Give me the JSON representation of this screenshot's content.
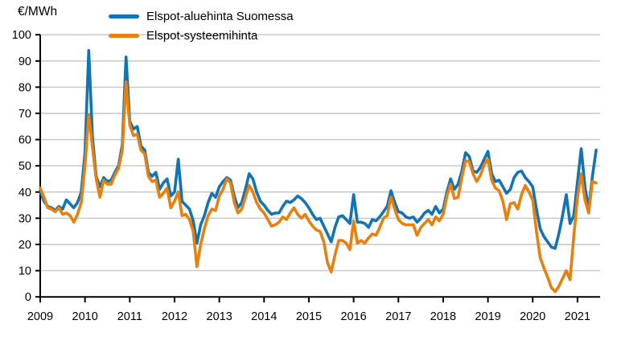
{
  "chart_data": {
    "type": "line",
    "title": "",
    "ylabel": "€/MWh",
    "xlabel": "",
    "x_resolution": "monthly",
    "x_range": [
      "2009-01",
      "2021-06"
    ],
    "x_tick_labels": [
      "2009",
      "2010",
      "2011",
      "2012",
      "2013",
      "2014",
      "2015",
      "2016",
      "2017",
      "2018",
      "2019",
      "2020",
      "2021"
    ],
    "y_ticks": [
      0,
      10,
      20,
      30,
      40,
      50,
      60,
      70,
      80,
      90,
      100
    ],
    "ylim": [
      0,
      100
    ],
    "grid": "horizontal",
    "grid_color": "#c6c6c6",
    "axis_color": "#000000",
    "legend_position": "top-left",
    "series": [
      {
        "name": "Elspot-aluehinta Suomessa",
        "color": "#1274b3",
        "values": [
          40.5,
          36.5,
          34.5,
          34,
          33,
          34.5,
          33.5,
          37,
          35.5,
          34,
          36,
          40,
          55,
          94,
          61,
          46,
          42,
          45.5,
          44,
          44.5,
          47.5,
          50,
          58,
          91.5,
          67,
          64,
          65,
          57.5,
          56,
          47.5,
          46,
          47.5,
          41,
          43.5,
          45,
          38.5,
          40,
          52.5,
          36.5,
          35,
          33.5,
          29,
          20.5,
          27.5,
          31,
          36,
          39.5,
          38,
          42,
          44,
          45.5,
          44.5,
          38.5,
          34,
          36,
          41,
          47,
          45,
          40,
          36.5,
          35,
          33,
          31.5,
          32,
          32,
          34.5,
          36.5,
          36,
          37,
          38.5,
          37.5,
          36,
          34,
          31.5,
          29.5,
          30,
          27,
          24,
          21,
          26.5,
          30.5,
          31,
          29.5,
          28,
          39,
          28.5,
          28.5,
          28,
          26.5,
          29.5,
          29,
          30.5,
          32.5,
          34.5,
          40.5,
          36,
          32.5,
          32,
          30.5,
          30,
          30.5,
          28.5,
          30,
          32,
          33,
          31.5,
          34.5,
          32,
          33.5,
          40,
          45,
          41,
          43,
          48,
          55,
          53.5,
          48,
          47.5,
          49.5,
          52.5,
          55.5,
          47,
          44,
          44.5,
          42,
          39.5,
          41,
          45.5,
          47.5,
          48,
          45.5,
          44,
          42,
          33.5,
          26,
          23,
          21,
          19,
          18.5,
          24,
          31,
          39,
          28,
          31,
          44,
          56.5,
          42,
          33.5,
          46,
          56
        ]
      },
      {
        "name": "Elspot-systeemihinta",
        "color": "#e8800f",
        "values": [
          41.5,
          38,
          34,
          33.5,
          32.5,
          34,
          31.5,
          32,
          31,
          28.5,
          31.5,
          36,
          50,
          69.5,
          57,
          45,
          38,
          44.5,
          43,
          43,
          46.5,
          49,
          56,
          82,
          65.5,
          61.5,
          62,
          56,
          54.5,
          46,
          44,
          44.5,
          38,
          39.5,
          41.5,
          34,
          36.5,
          40,
          31,
          31.5,
          29.5,
          25,
          11.5,
          20,
          26,
          31,
          33.5,
          33,
          38.5,
          41,
          45,
          43.5,
          36,
          32,
          33.5,
          38,
          42.5,
          40,
          36,
          33.5,
          32,
          29.5,
          27,
          27.5,
          28.5,
          30.5,
          29.5,
          32,
          34,
          31.5,
          30,
          31.5,
          29,
          27,
          25.5,
          25,
          21,
          13,
          9.5,
          16,
          21.5,
          21.5,
          20.5,
          18,
          29,
          20.5,
          21.5,
          20.5,
          22.5,
          24,
          23.5,
          26.5,
          30,
          31,
          38,
          33.5,
          29.5,
          28,
          27.5,
          27.5,
          27.5,
          23.5,
          26.5,
          28,
          29.5,
          27.5,
          30.5,
          29,
          31.5,
          38.5,
          43,
          37.5,
          38,
          45.5,
          52,
          51.5,
          47,
          44,
          46.5,
          50.5,
          52.5,
          44.5,
          41.5,
          40.5,
          36.5,
          29.5,
          35.5,
          36,
          33.5,
          39,
          42.5,
          40,
          37,
          25,
          15,
          11,
          7.5,
          3.5,
          2,
          4,
          7,
          10,
          6.5,
          23,
          38,
          47,
          37,
          32,
          44,
          43.5
        ]
      }
    ]
  }
}
